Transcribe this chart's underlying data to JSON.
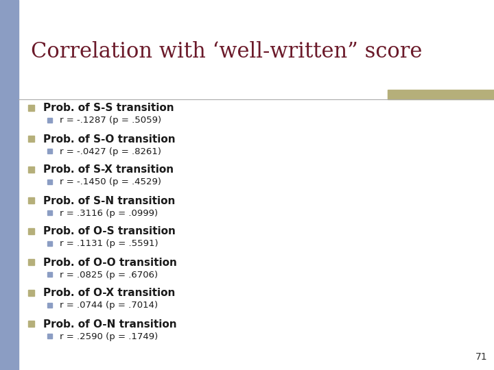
{
  "title": "Correlation with ‘well-written” score",
  "title_color": "#6B1A2A",
  "title_fontsize": 22,
  "background_color": "#FFFFFF",
  "left_bar_color": "#8B9DC3",
  "left_bar_width": 0.038,
  "right_bar_color": "#B5AF7A",
  "slide_number": "71",
  "main_bullet_color": "#B5AF7A",
  "sub_bullet_color": "#8B9DC3",
  "items": [
    {
      "main": "Prob. of S-S transition",
      "sub": "r = -.1287 (p = .5059)"
    },
    {
      "main": "Prob. of S-O transition",
      "sub": "r = -.0427 (p = .8261)"
    },
    {
      "main": "Prob. of S-X transition",
      "sub": "r = -.1450 (p = .4529)"
    },
    {
      "main": "Prob. of S-N transition",
      "sub": "r = .3116 (p = .0999)"
    },
    {
      "main": "Prob. of O-S transition",
      "sub": "r = .1131 (p = .5591)"
    },
    {
      "main": "Prob. of O-O transition",
      "sub": "r = .0825 (p = .6706)"
    },
    {
      "main": "Prob. of O-X transition",
      "sub": "r = .0744 (p = .7014)"
    },
    {
      "main": "Prob. of O-N transition",
      "sub": "r = .2590 (p = .1749)"
    }
  ]
}
